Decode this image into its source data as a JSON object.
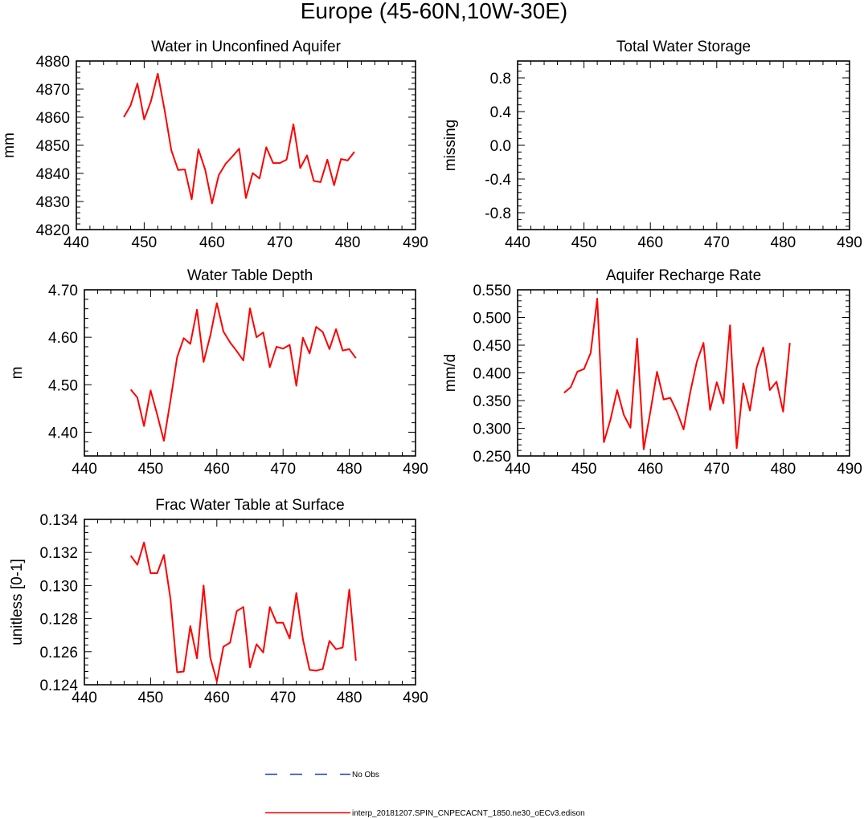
{
  "page_title": "Europe (45-60N,10W-30E)",
  "legend": {
    "obs_label": "No Obs",
    "obs_color": "#1f3fd6",
    "model_label": "interp_20181207.SPIN_CNPECACNT_1850.ne30_oECv3.edison",
    "model_color": "#ff0000"
  },
  "chart_data": [
    {
      "type": "line",
      "title": "Water in Unconfined Aquifer",
      "xlabel": "",
      "ylabel": "mm",
      "xlim": [
        440,
        490
      ],
      "ylim": [
        4820,
        4880
      ],
      "xticks": [
        440,
        450,
        460,
        470,
        480,
        490
      ],
      "yticks": [
        4820,
        4830,
        4840,
        4850,
        4860,
        4870,
        4880
      ],
      "ytick_labels": [
        "4820",
        "4830",
        "4840",
        "4850",
        "4860",
        "4870",
        "4880"
      ],
      "series": [
        {
          "name": "interp_20181207.SPIN_CNPECACNT_1850.ne30_oECv3.edison",
          "x": [
            447,
            448,
            449,
            450,
            451,
            452,
            453,
            454,
            455,
            456,
            457,
            458,
            459,
            460,
            461,
            462,
            463,
            464,
            465,
            466,
            467,
            468,
            469,
            470,
            471,
            472,
            473,
            474,
            475,
            476,
            477,
            478,
            479,
            480,
            481
          ],
          "values": [
            4860.0,
            4864.2,
            4872.0,
            4859.2,
            4865.7,
            4875.5,
            4862.7,
            4848.2,
            4841.2,
            4841.4,
            4830.8,
            4848.6,
            4841.2,
            4829.3,
            4839.4,
            4843.4,
            4846.0,
            4848.8,
            4831.2,
            4840.1,
            4838.2,
            4849.3,
            4843.7,
            4843.7,
            4844.9,
            4857.5,
            4841.9,
            4846.4,
            4837.3,
            4836.9,
            4844.9,
            4835.8,
            4845.1,
            4844.6,
            4847.7
          ]
        }
      ]
    },
    {
      "type": "line",
      "title": "Total Water Storage",
      "xlabel": "",
      "ylabel": "missing",
      "xlim": [
        440,
        490
      ],
      "ylim": [
        -1.0,
        1.0
      ],
      "xticks": [
        440,
        450,
        460,
        470,
        480,
        490
      ],
      "yticks": [
        -0.8,
        -0.4,
        0.0,
        0.4,
        0.8
      ],
      "ytick_labels": [
        "-0.8",
        "-0.4",
        "0.0",
        "0.4",
        "0.8"
      ],
      "series": []
    },
    {
      "type": "line",
      "title": "Water Table Depth",
      "xlabel": "",
      "ylabel": "m",
      "xlim": [
        440,
        490
      ],
      "ylim": [
        4.35,
        4.7
      ],
      "xticks": [
        440,
        450,
        460,
        470,
        480,
        490
      ],
      "yticks": [
        4.4,
        4.5,
        4.6,
        4.7
      ],
      "ytick_labels": [
        "4.40",
        "4.50",
        "4.60",
        "4.70"
      ],
      "series": [
        {
          "name": "interp_20181207.SPIN_CNPECACNT_1850.ne30_oECv3.edison",
          "x": [
            447,
            448,
            449,
            450,
            451,
            452,
            453,
            454,
            455,
            456,
            457,
            458,
            459,
            460,
            461,
            462,
            463,
            464,
            465,
            466,
            467,
            468,
            469,
            470,
            471,
            472,
            473,
            474,
            475,
            476,
            477,
            478,
            479,
            480,
            481
          ],
          "values": [
            4.49,
            4.473,
            4.413,
            4.488,
            4.437,
            4.382,
            4.467,
            4.558,
            4.598,
            4.586,
            4.658,
            4.548,
            4.603,
            4.672,
            4.612,
            4.589,
            4.571,
            4.551,
            4.661,
            4.6,
            4.61,
            4.537,
            4.58,
            4.576,
            4.584,
            4.498,
            4.599,
            4.566,
            4.622,
            4.611,
            4.575,
            4.617,
            4.572,
            4.575,
            4.556
          ]
        }
      ]
    },
    {
      "type": "line",
      "title": "Aquifer Recharge Rate",
      "xlabel": "",
      "ylabel": "mm/d",
      "xlim": [
        440,
        490
      ],
      "ylim": [
        0.25,
        0.55
      ],
      "xticks": [
        440,
        450,
        460,
        470,
        480,
        490
      ],
      "yticks": [
        0.25,
        0.3,
        0.35,
        0.4,
        0.45,
        0.5,
        0.55
      ],
      "ytick_labels": [
        "0.250",
        "0.300",
        "0.350",
        "0.400",
        "0.450",
        "0.500",
        "0.550"
      ],
      "series": [
        {
          "name": "interp_20181207.SPIN_CNPECACNT_1850.ne30_oECv3.edison",
          "x": [
            447,
            448,
            449,
            450,
            451,
            452,
            453,
            454,
            455,
            456,
            457,
            458,
            459,
            460,
            461,
            462,
            463,
            464,
            465,
            466,
            467,
            468,
            469,
            470,
            471,
            472,
            473,
            474,
            475,
            476,
            477,
            478,
            479,
            480,
            481
          ],
          "values": [
            0.364,
            0.374,
            0.402,
            0.407,
            0.436,
            0.534,
            0.275,
            0.316,
            0.369,
            0.324,
            0.301,
            0.462,
            0.262,
            0.33,
            0.402,
            0.352,
            0.355,
            0.33,
            0.298,
            0.365,
            0.42,
            0.454,
            0.333,
            0.383,
            0.345,
            0.486,
            0.264,
            0.381,
            0.332,
            0.409,
            0.446,
            0.369,
            0.384,
            0.33,
            0.454
          ]
        }
      ]
    },
    {
      "type": "line",
      "title": "Frac Water Table at Surface",
      "xlabel": "",
      "ylabel": "unitless [0-1]",
      "xlim": [
        440,
        490
      ],
      "ylim": [
        0.124,
        0.134
      ],
      "xticks": [
        440,
        450,
        460,
        470,
        480,
        490
      ],
      "yticks": [
        0.124,
        0.126,
        0.128,
        0.13,
        0.132,
        0.134
      ],
      "ytick_labels": [
        "0.124",
        "0.126",
        "0.128",
        "0.130",
        "0.132",
        "0.134"
      ],
      "series": [
        {
          "name": "interp_20181207.SPIN_CNPECACNT_1850.ne30_oECv3.edison",
          "x": [
            447,
            448,
            449,
            450,
            451,
            452,
            453,
            454,
            455,
            456,
            457,
            458,
            459,
            460,
            461,
            462,
            463,
            464,
            465,
            466,
            467,
            468,
            469,
            470,
            471,
            472,
            473,
            474,
            475,
            476,
            477,
            478,
            479,
            480,
            481
          ],
          "values": [
            0.1318,
            0.13125,
            0.1326,
            0.13075,
            0.13075,
            0.13185,
            0.1292,
            0.12475,
            0.1248,
            0.12755,
            0.1256,
            0.13,
            0.12565,
            0.1242,
            0.1263,
            0.12655,
            0.12845,
            0.1287,
            0.12505,
            0.12645,
            0.12595,
            0.1287,
            0.12775,
            0.12775,
            0.1268,
            0.12955,
            0.12675,
            0.1249,
            0.12485,
            0.12495,
            0.12665,
            0.12615,
            0.12625,
            0.12975,
            0.12545
          ]
        }
      ]
    }
  ]
}
